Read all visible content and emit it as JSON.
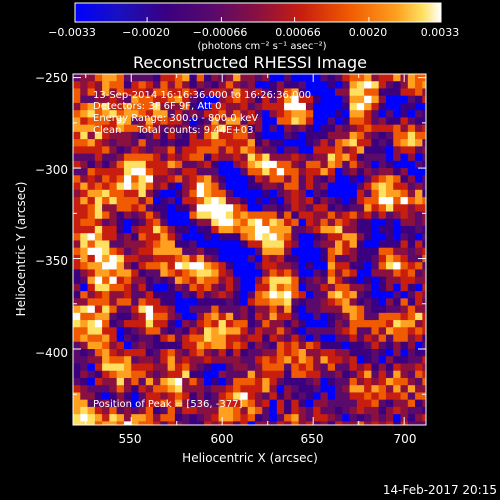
{
  "chart_data": {
    "type": "heatmap",
    "title": "Reconstructed RHESSI Image",
    "xlabel": "Heliocentric X (arcsec)",
    "ylabel": "Heliocentric Y (arcsec)",
    "xlim": [
      518,
      712
    ],
    "ylim": [
      -442,
      -248
    ],
    "x_ticks": [
      550,
      600,
      650,
      700
    ],
    "y_ticks": [
      -250,
      -300,
      -350,
      -400
    ],
    "x_tick_labels": [
      "550",
      "600",
      "650",
      "700"
    ],
    "y_tick_labels": [
      "−250",
      "−300",
      "−350",
      "−400"
    ],
    "colorbar": {
      "range": [
        -0.0033,
        0.0033
      ],
      "tick_values": [
        -0.0033,
        -0.002,
        -0.00066,
        0.00066,
        0.002,
        0.0033
      ],
      "tick_labels": [
        "−0.0033",
        "−0.0020",
        "−0.00066",
        "0.00066",
        "0.0020",
        "0.0033"
      ],
      "units_label": "(photons cm⁻² s⁻¹ asec⁻²)",
      "colormap": [
        "#0000ff",
        "#3a0080",
        "#5a0a6a",
        "#8a1040",
        "#c81e10",
        "#f05a00",
        "#ffa020",
        "#ffe060",
        "#ffffff"
      ]
    },
    "annotations": [
      "13-Sep-2014 16:16:36.000 to 16:26:36.000",
      "Detectors: 3F 6F 9F, Att 0",
      "Energy Range: 300.0 - 800.0 keV",
      "Clean     Total counts: 9.44E+03"
    ],
    "peak": {
      "label": "Position of Peak = [536, -377]",
      "x": 536,
      "y": -377
    },
    "pixel_size_arcsec": 4,
    "grid": false
  },
  "footer": {
    "timestamp": "14-Feb-2017 20:15"
  }
}
